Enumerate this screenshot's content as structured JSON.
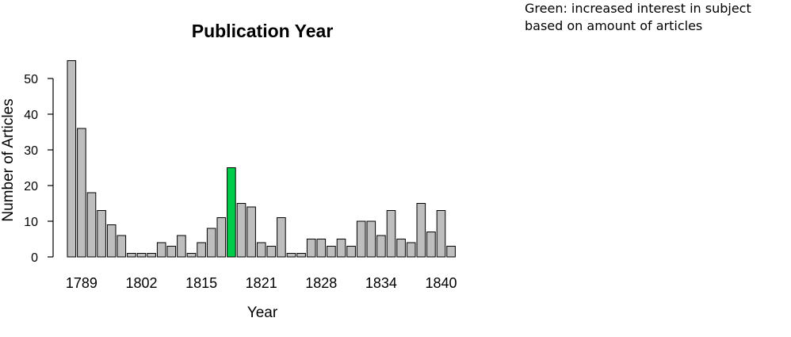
{
  "note": {
    "line1": "Green: increased interest in subject",
    "line2": "based on amount of articles"
  },
  "chart_data": {
    "type": "bar",
    "title": "Publication Year",
    "xlabel": "Year",
    "ylabel": "Number of Articles",
    "ylim": [
      0,
      55
    ],
    "yticks": [
      0,
      10,
      20,
      30,
      40,
      50
    ],
    "xtick_labels": [
      "1789",
      "1802",
      "1815",
      "1821",
      "1828",
      "1834",
      "1840"
    ],
    "xtick_bar_indices": [
      1,
      7,
      13,
      19,
      25,
      31,
      37
    ],
    "values": [
      55,
      36,
      18,
      13,
      9,
      6,
      1,
      1,
      1,
      4,
      3,
      6,
      1,
      4,
      8,
      11,
      25,
      15,
      14,
      4,
      3,
      11,
      1,
      1,
      5,
      5,
      3,
      5,
      3,
      10,
      10,
      6,
      13,
      5,
      4,
      15,
      7,
      13,
      3
    ],
    "highlight_index": 16,
    "colors": {
      "bar": "#bebebe",
      "highlight": "#00cc4a",
      "stroke": "#000000"
    },
    "grid": false,
    "legend": "none"
  }
}
